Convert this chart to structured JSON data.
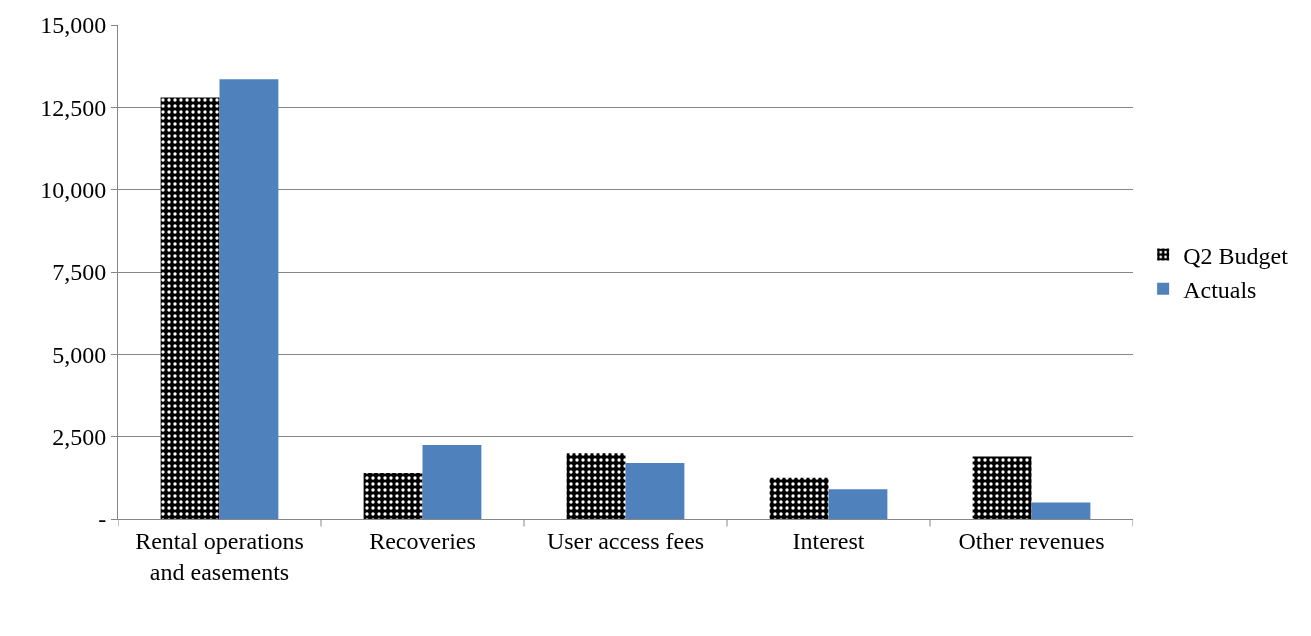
{
  "chart_data": {
    "type": "bar",
    "categories": [
      "Rental operations and easements",
      "Recoveries",
      "User access fees",
      "Interest",
      "Other revenues"
    ],
    "series": [
      {
        "name": "Q2 Budget",
        "color": "#000000",
        "values": [
          12800,
          1400,
          2000,
          1250,
          1900
        ]
      },
      {
        "name": "Actuals",
        "color": "#4f81bd",
        "values": [
          13350,
          2250,
          1700,
          900,
          500
        ]
      }
    ],
    "ylim": [
      0,
      15000
    ],
    "yticks": [
      {
        "value": 0,
        "label": "-"
      },
      {
        "value": 2500,
        "label": "2,500"
      },
      {
        "value": 5000,
        "label": "5,000"
      },
      {
        "value": 7500,
        "label": "7,500"
      },
      {
        "value": 10000,
        "label": "10,000"
      },
      {
        "value": 12500,
        "label": "12,500"
      },
      {
        "value": 15000,
        "label": "15,000"
      }
    ],
    "grid": "y",
    "legend": "right"
  }
}
